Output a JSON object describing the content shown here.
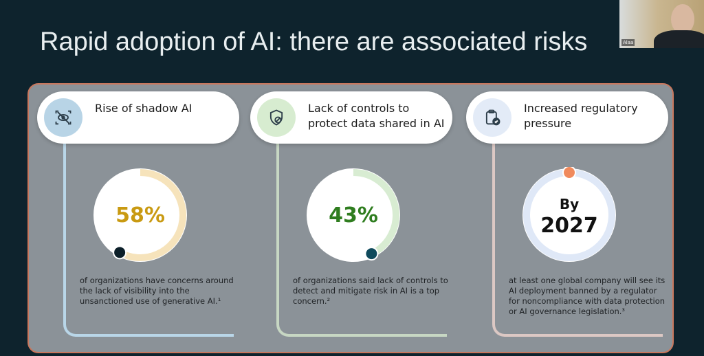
{
  "slide": {
    "title": "Rapid adoption of AI: there are associated risks"
  },
  "webcam": {
    "name": "Alaa"
  },
  "cards": [
    {
      "title": "Rise of shadow AI",
      "icon": "eye-off-scan-icon",
      "stat": "58%",
      "percent": 58,
      "stat_color": "#c99a12",
      "arc_color": "#f6e3bb",
      "dot_color": "#0c1f29",
      "line_color": "#b9d6e8",
      "icon_bg": "#b8d4e6",
      "desc": "of organizations have concerns around the lack of visibility into the unsanctioned use of generative AI.¹"
    },
    {
      "title": "Lack of controls to protect data shared in AI",
      "icon": "shield-block-icon",
      "stat": "43%",
      "percent": 43,
      "stat_color": "#2f7d1f",
      "arc_color": "#d8ecd2",
      "dot_color": "#0f4a5c",
      "line_color": "#c7d7c3",
      "icon_bg": "#d7ecd0",
      "desc": "of organizations said lack of controls to detect and mitigate risk in AI is a top concern.²"
    },
    {
      "title": "Increased regulatory pressure",
      "icon": "clipboard-check-icon",
      "stat_top": "By",
      "stat": "2027",
      "percent": 100,
      "stat_color": "#111111",
      "arc_color": "#dfe8f7",
      "dot_color": "#f08a5d",
      "line_color": "#dcc8c4",
      "icon_bg": "#e3ebf7",
      "desc": "at least one global company will see its AI deployment banned by a regulator for noncompliance with data protection or AI governance legislation.³"
    }
  ]
}
